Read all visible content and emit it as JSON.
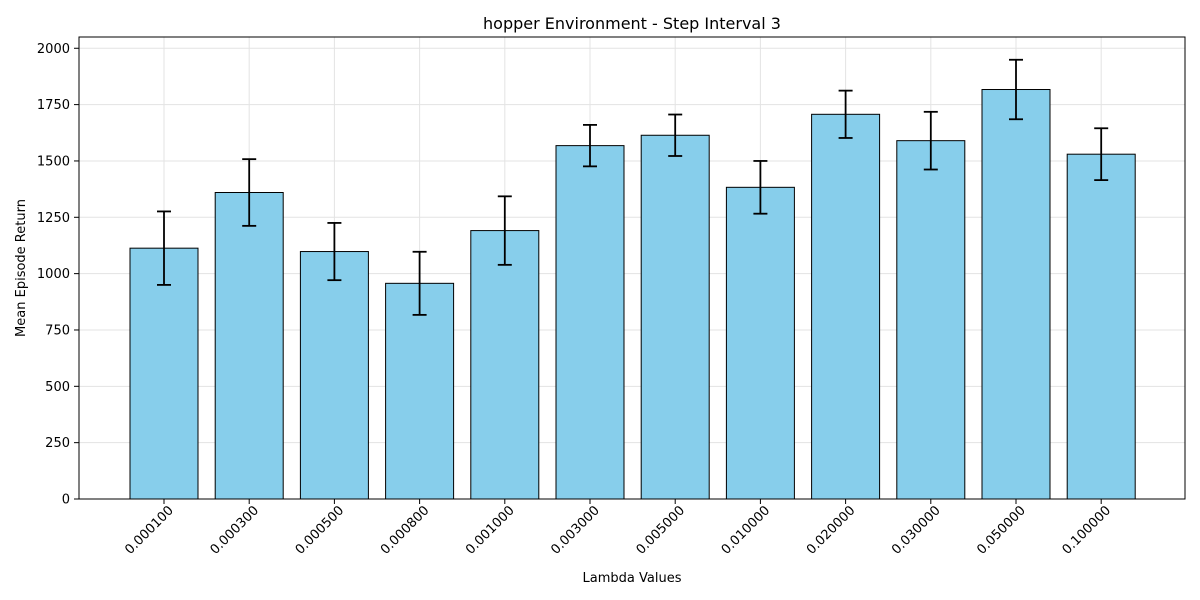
{
  "chart_data": {
    "type": "bar",
    "title": "hopper Environment - Step Interval 3",
    "xlabel": "Lambda Values",
    "ylabel": "Mean Episode Return",
    "categories": [
      "0.000100",
      "0.000300",
      "0.000500",
      "0.000800",
      "0.001000",
      "0.003000",
      "0.005000",
      "0.010000",
      "0.020000",
      "0.030000",
      "0.050000",
      "0.100000"
    ],
    "values": [
      1113,
      1360,
      1098,
      957,
      1191,
      1568,
      1614,
      1383,
      1707,
      1590,
      1817,
      1530
    ],
    "error": [
      163,
      148,
      127,
      140,
      152,
      92,
      92,
      117,
      105,
      128,
      132,
      115
    ],
    "ylim": [
      0,
      2050
    ],
    "yticks": [
      0,
      250,
      500,
      750,
      1000,
      1250,
      1500,
      1750,
      2000
    ],
    "bar_color": "#87ceeb",
    "edge_color": "#000000",
    "grid": true,
    "legend": "none"
  }
}
